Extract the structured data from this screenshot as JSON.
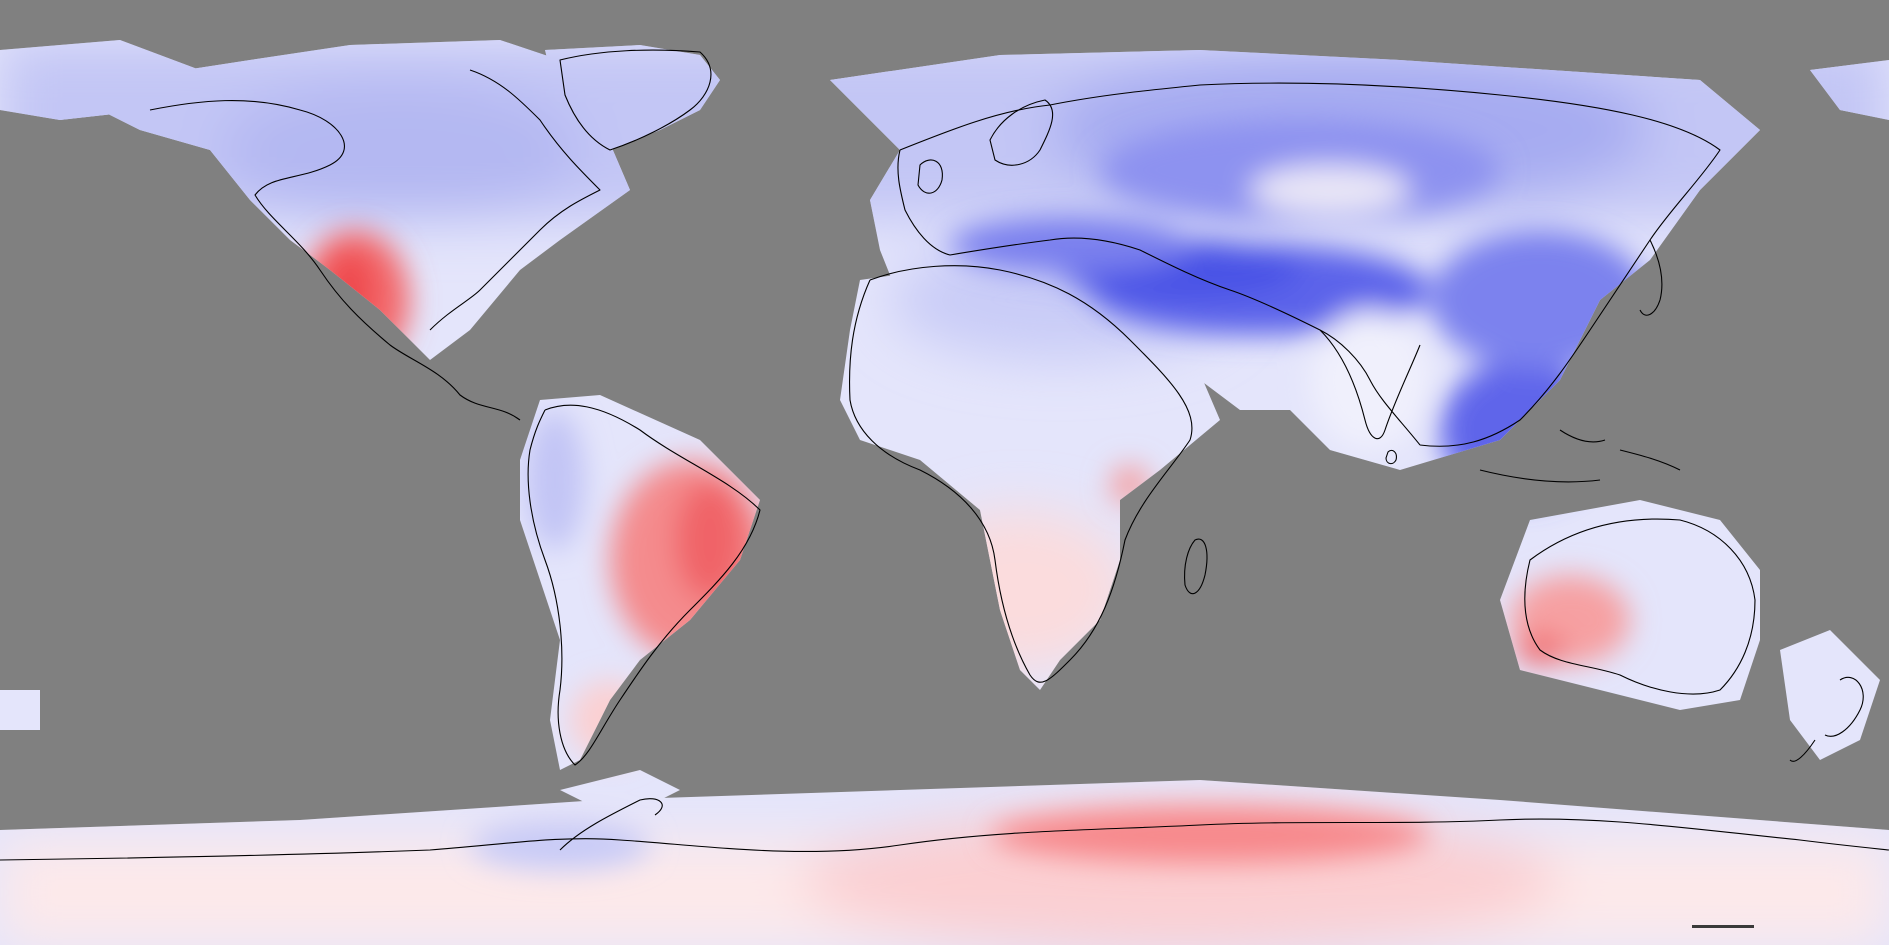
{
  "map": {
    "projection": "equirectangular",
    "extent": {
      "lon": [
        -180,
        180
      ],
      "lat": [
        -90,
        90
      ]
    },
    "ocean_mask_color": "#808080",
    "coastline_color": "#000000",
    "color_scale": {
      "type": "diverging",
      "negative_color": "#3c46e6",
      "neutral_color": "#ffffff",
      "positive_color": "#ff3c3c"
    },
    "notable_regions": [
      {
        "name": "himalaya-tibet",
        "sign": "negative",
        "magnitude": 0.85
      },
      {
        "name": "southeast-asia",
        "sign": "negative",
        "magnitude": 0.8
      },
      {
        "name": "siberia",
        "sign": "negative",
        "magnitude": 0.55
      },
      {
        "name": "northern-canada",
        "sign": "negative",
        "magnitude": 0.4
      },
      {
        "name": "sahara-arabia",
        "sign": "negative",
        "magnitude": 0.3
      },
      {
        "name": "western-mexico",
        "sign": "positive",
        "magnitude": 0.8
      },
      {
        "name": "eastern-brazil",
        "sign": "positive",
        "magnitude": 0.75
      },
      {
        "name": "southwest-australia",
        "sign": "positive",
        "magnitude": 0.6
      },
      {
        "name": "east-antarctica-coast",
        "sign": "positive",
        "magnitude": 0.7
      },
      {
        "name": "southern-africa",
        "sign": "positive",
        "magnitude": 0.25
      }
    ]
  }
}
